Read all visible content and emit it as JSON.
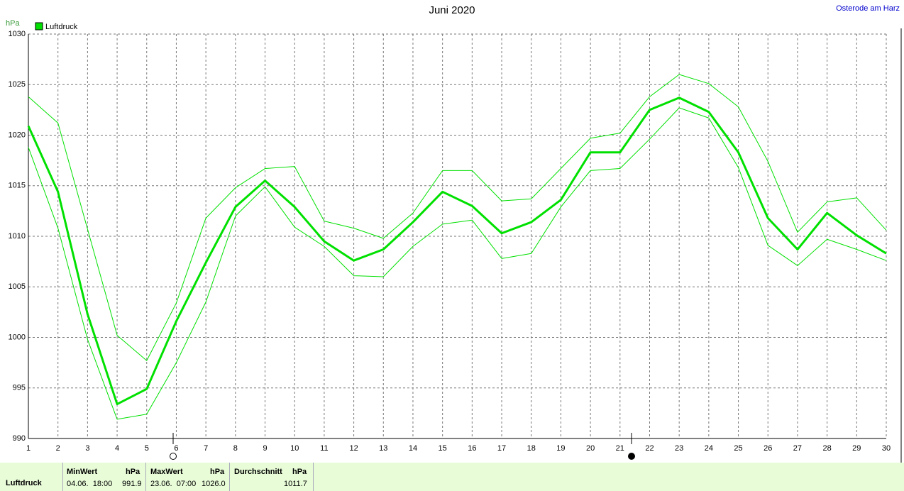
{
  "chart_data": {
    "type": "line",
    "title": "Juni 2020",
    "subtitle": "Osterode am Harz",
    "y_label": "hPa",
    "x": [
      1,
      2,
      3,
      4,
      5,
      6,
      7,
      8,
      9,
      10,
      11,
      12,
      13,
      14,
      15,
      16,
      17,
      18,
      19,
      20,
      21,
      22,
      23,
      24,
      25,
      26,
      27,
      28,
      29,
      30
    ],
    "series": [
      {
        "name": "Luftdruck",
        "color": "#00e000",
        "width": 3,
        "values": [
          1020.9,
          1014.4,
          1002.3,
          993.4,
          994.9,
          1001.6,
          1007.4,
          1012.9,
          1015.5,
          1012.9,
          1009.5,
          1007.6,
          1008.7,
          1011.4,
          1014.4,
          1013.0,
          1010.3,
          1011.4,
          1013.6,
          1018.3,
          1018.3,
          1022.5,
          1023.7,
          1022.3,
          1018.3,
          1011.8,
          1008.7,
          1012.3,
          1010.1,
          1008.3
        ]
      },
      {
        "color": "#00e000",
        "width": 1,
        "values": [
          1023.8,
          1021.2,
          1010.7,
          1000.2,
          997.7,
          1003.4,
          1011.8,
          1014.8,
          1016.7,
          1016.9,
          1011.5,
          1010.8,
          1009.8,
          1012.3,
          1016.5,
          1016.5,
          1013.5,
          1013.7,
          1016.7,
          1019.7,
          1020.2,
          1023.8,
          1026.0,
          1025.1,
          1022.8,
          1017.4,
          1010.4,
          1013.4,
          1013.8,
          1010.6
        ]
      },
      {
        "color": "#00e000",
        "width": 1,
        "values": [
          1018.8,
          1010.8,
          999.8,
          991.9,
          992.4,
          997.5,
          1003.5,
          1012.0,
          1014.9,
          1010.9,
          1009.0,
          1006.1,
          1006.0,
          1009.0,
          1011.2,
          1011.6,
          1007.8,
          1008.3,
          1012.9,
          1016.5,
          1016.7,
          1019.6,
          1022.7,
          1021.7,
          1016.8,
          1009.1,
          1007.1,
          1009.7,
          1008.7,
          1007.6
        ]
      }
    ],
    "xlim": [
      1,
      30
    ],
    "xticks": [
      1,
      2,
      3,
      4,
      5,
      6,
      7,
      8,
      9,
      10,
      11,
      12,
      13,
      14,
      15,
      16,
      17,
      18,
      19,
      20,
      21,
      22,
      23,
      24,
      25,
      26,
      27,
      28,
      29,
      30
    ],
    "ylim": [
      990,
      1030
    ],
    "yticks": [
      990,
      995,
      1000,
      1005,
      1010,
      1015,
      1020,
      1025,
      1030
    ],
    "grid": true,
    "legend": "top-left"
  },
  "summary": {
    "label": "Luftdruck",
    "min": {
      "header": "MinWert",
      "unit": "hPa",
      "time": "04.06.  18:00",
      "value": "991.9"
    },
    "max": {
      "header": "MaxWert",
      "unit": "hPa",
      "time": "23.06.  07:00",
      "value": "1026.0"
    },
    "avg": {
      "header": "Durchschnitt",
      "unit": "hPa",
      "value": "1011.7"
    }
  }
}
